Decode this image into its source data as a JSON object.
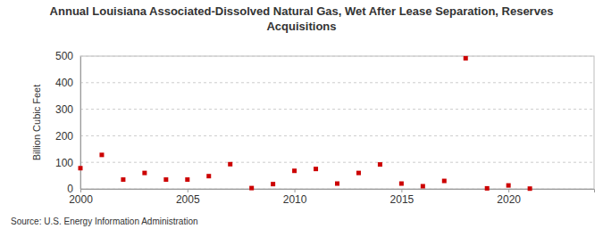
{
  "chart_data": {
    "type": "scatter",
    "title": "Annual Louisiana Associated-Dissolved Natural Gas, Wet After Lease Separation, Reserves Acquisitions",
    "y_label": "Billion Cubic Feet",
    "source": "Source: U.S. Energy Information Administration",
    "x": [
      2000,
      2001,
      2002,
      2003,
      2004,
      2005,
      2006,
      2007,
      2008,
      2009,
      2010,
      2011,
      2012,
      2013,
      2014,
      2015,
      2016,
      2017,
      2018,
      2019,
      2020,
      2021
    ],
    "values": [
      78,
      128,
      35,
      60,
      35,
      35,
      48,
      93,
      3,
      18,
      68,
      75,
      20,
      60,
      92,
      20,
      10,
      30,
      492,
      2,
      13,
      1
    ],
    "color": "#cc0000",
    "marker": "square",
    "xlim": [
      2000,
      2024
    ],
    "xticks": [
      2000,
      2005,
      2010,
      2015,
      2020
    ],
    "ylim": [
      0,
      500
    ],
    "yticks": [
      0,
      100,
      200,
      300,
      400,
      500
    ],
    "grid": true
  }
}
